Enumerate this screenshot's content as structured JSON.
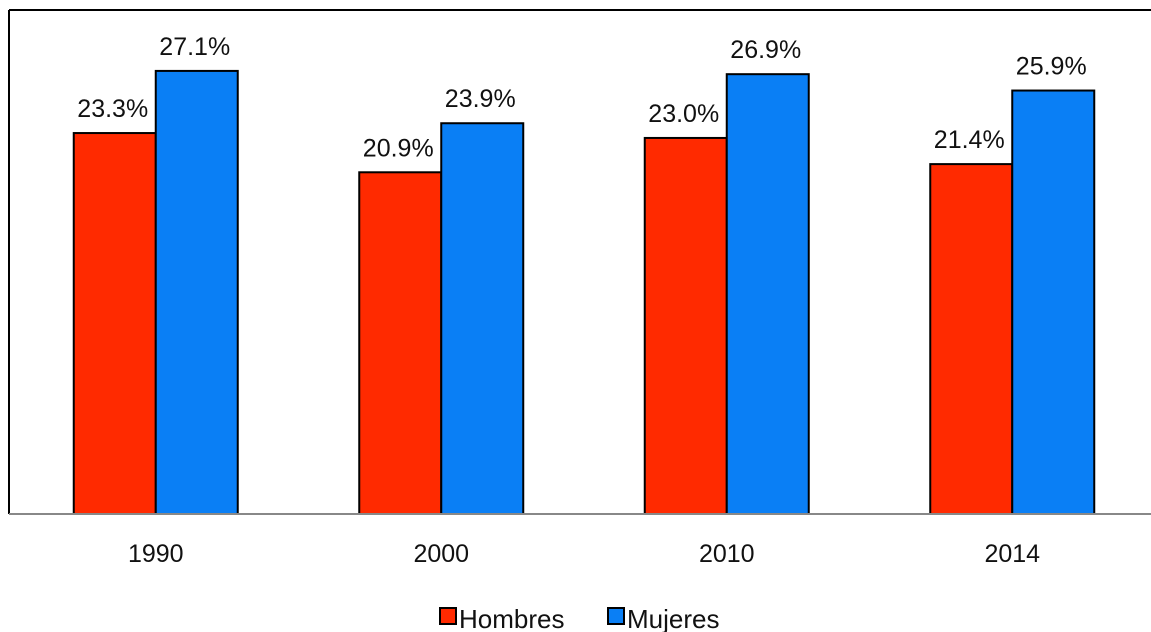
{
  "chart_data": {
    "type": "bar",
    "categories": [
      "1990",
      "2000",
      "2010",
      "2014"
    ],
    "series": [
      {
        "name": "Hombres",
        "values": [
          23.3,
          20.9,
          23.0,
          21.4
        ],
        "labels": [
          "23.3%",
          "20.9%",
          "23.0%",
          "21.4%"
        ],
        "color": "#ff2a00"
      },
      {
        "name": "Mujeres",
        "values": [
          27.1,
          23.9,
          26.9,
          25.9
        ],
        "labels": [
          "27.1%",
          "23.9%",
          "26.9%",
          "25.9%"
        ],
        "color": "#0a7ff5"
      }
    ],
    "title": "",
    "xlabel": "",
    "ylabel": "",
    "ylim": [
      0,
      27.7
    ],
    "grid": false,
    "legend": "bottom"
  }
}
